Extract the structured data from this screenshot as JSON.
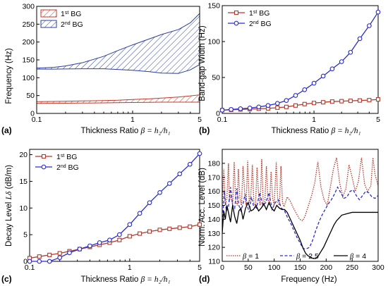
{
  "colors": {
    "red": "#b03a2e",
    "blue": "#2b2bd0",
    "black": "#000000",
    "band1": "#c0392b",
    "band2": "#2c3e9e"
  },
  "chart_data": [
    {
      "panel": "(a)",
      "type": "area",
      "ylabel": "Frequency (Hz)",
      "xlabel_text": "Thickness Ratio ",
      "xlabel_symbol": "β = h₂/h₁",
      "xscale": "log",
      "xlim": [
        0.1,
        5
      ],
      "ylim": [
        0,
        300
      ],
      "xticks": [
        0.1,
        1,
        5
      ],
      "yticks": [
        0,
        50,
        100,
        150,
        200,
        250,
        300
      ],
      "legend": {
        "placement": "top-left",
        "entries": [
          "1st BG",
          "2nd BG"
        ]
      },
      "series": [
        {
          "name": "1st BG",
          "x": [
            0.1,
            0.2,
            0.3,
            0.5,
            0.7,
            1,
            1.5,
            2,
            3,
            4,
            5
          ],
          "lower": [
            28,
            28.5,
            29,
            29.5,
            30,
            30.5,
            31,
            31.5,
            31.5,
            31.5,
            31.5
          ],
          "upper": [
            33,
            34,
            35,
            36,
            37,
            39,
            41,
            43,
            46,
            49,
            52
          ]
        },
        {
          "name": "2nd BG",
          "x": [
            0.1,
            0.15,
            0.2,
            0.3,
            0.5,
            0.7,
            1,
            1.5,
            2,
            3,
            4,
            5
          ],
          "lower": [
            124,
            124,
            124.5,
            125,
            125,
            123,
            121,
            117,
            113,
            112,
            122,
            137
          ],
          "upper": [
            127,
            129,
            133,
            142,
            160,
            176,
            192,
            209,
            221,
            235,
            254,
            280
          ]
        }
      ]
    },
    {
      "panel": "(b)",
      "type": "line",
      "ylabel": "Band-gap Width (Hz)",
      "xlabel_text": "Thickness Ratio ",
      "xlabel_symbol": "β = h₂/h₁",
      "xscale": "log",
      "xlim": [
        0.1,
        5
      ],
      "ylim": [
        0,
        150
      ],
      "xticks": [
        0.1,
        1,
        5
      ],
      "yticks": [
        0,
        50,
        100,
        150
      ],
      "legend": {
        "placement": "top-left",
        "entries": [
          "1st BG",
          "2nd BG"
        ]
      },
      "series": [
        {
          "name": "1st BG",
          "x": [
            0.1,
            0.125,
            0.158,
            0.2,
            0.25,
            0.316,
            0.4,
            0.5,
            0.63,
            0.79,
            1,
            1.26,
            1.58,
            2,
            2.5,
            3.16,
            4,
            5
          ],
          "values": [
            4.5,
            5,
            5.5,
            6,
            6.5,
            7,
            8,
            9,
            11,
            13,
            14.5,
            15.5,
            16.5,
            17,
            17.5,
            18,
            18.5,
            19.5
          ]
        },
        {
          "name": "2nd BG",
          "x": [
            0.1,
            0.125,
            0.158,
            0.2,
            0.25,
            0.316,
            0.4,
            0.5,
            0.63,
            0.79,
            1,
            1.26,
            1.58,
            2,
            2.5,
            3.16,
            4,
            5
          ],
          "values": [
            4.5,
            5.5,
            6.5,
            7.5,
            9,
            11,
            14,
            18,
            25,
            33,
            42,
            52,
            62,
            72,
            85,
            104,
            122,
            141
          ]
        }
      ]
    },
    {
      "panel": "(c)",
      "type": "line",
      "ylabel_text": "Decay Level ",
      "ylabel_symbol": "Lδ",
      "ylabel_unit": " (dB/m)",
      "xlabel_text": "Thickness Ratio ",
      "xlabel_symbol": "β = h₂/h₁",
      "xscale": "log",
      "xlim": [
        0.1,
        5
      ],
      "ylim": [
        0,
        21
      ],
      "xticks": [
        0.1,
        1,
        5
      ],
      "yticks": [
        0,
        5,
        10,
        15,
        20
      ],
      "legend": {
        "placement": "top-left",
        "entries": [
          "1st BG",
          "2nd BG"
        ]
      },
      "series": [
        {
          "name": "1st BG",
          "x": [
            0.1,
            0.125,
            0.158,
            0.2,
            0.25,
            0.316,
            0.4,
            0.5,
            0.63,
            0.79,
            1,
            1.26,
            1.58,
            2,
            2.5,
            3.16,
            4,
            5
          ],
          "values": [
            0.6,
            0.9,
            1.2,
            1.5,
            1.9,
            2.3,
            2.7,
            3.1,
            3.5,
            4.0,
            4.7,
            5.2,
            5.6,
            5.9,
            6.1,
            6.3,
            6.5,
            6.9
          ]
        },
        {
          "name": "2nd BG",
          "x": [
            0.1,
            0.125,
            0.158,
            0.2,
            0.25,
            0.316,
            0.4,
            0.5,
            0.63,
            0.79,
            1,
            1.26,
            1.58,
            2,
            2.5,
            3.16,
            4,
            5
          ],
          "values": [
            0,
            0,
            0,
            0.7,
            1.6,
            2.3,
            2.9,
            3.5,
            4.0,
            5.0,
            6.9,
            9.0,
            11.0,
            12.9,
            14.6,
            16.4,
            18.2,
            20.2
          ]
        }
      ]
    },
    {
      "panel": "(d)",
      "type": "line",
      "ylabel": "Norm. Acc. Level (dB)",
      "xlabel": "Frequency (Hz)",
      "xlim": [
        0,
        300
      ],
      "ylim": [
        110,
        190
      ],
      "xticks": [
        0,
        50,
        100,
        150,
        200,
        250,
        300
      ],
      "yticks": [
        110,
        120,
        130,
        140,
        150,
        160,
        170,
        180
      ],
      "legend": {
        "placement": "bottom",
        "entries": [
          "β = 1",
          "β = 2.5",
          "β = 4"
        ]
      },
      "series": [
        {
          "name": "β = 1",
          "style": "dotted",
          "x": [
            0,
            3,
            6,
            9,
            12,
            14,
            17,
            20,
            23,
            26,
            29,
            31,
            34,
            37,
            40,
            43,
            46,
            49,
            52,
            55,
            58,
            61,
            64,
            67,
            70,
            73,
            76,
            79,
            82,
            85,
            88,
            91,
            94,
            97,
            100,
            104,
            107,
            110,
            113,
            116,
            119,
            125,
            131,
            137,
            143,
            149,
            155,
            160,
            166,
            172,
            178,
            184,
            190,
            196,
            202,
            208,
            214,
            220,
            226,
            232,
            238,
            244,
            250,
            256,
            262,
            268,
            274,
            280,
            286,
            290,
            294,
            300
          ],
          "values": [
            150,
            176,
            150,
            155,
            180,
            153,
            158,
            150,
            181,
            153,
            150,
            176,
            155,
            150,
            178,
            160,
            150,
            182,
            152,
            157,
            179,
            151,
            150,
            177,
            158,
            150,
            183,
            150,
            152,
            178,
            155,
            150,
            174,
            155,
            150,
            181,
            152,
            150,
            178,
            152,
            149,
            156,
            153,
            148,
            144,
            140,
            139,
            143,
            150,
            157,
            166,
            181,
            163,
            154,
            150,
            163,
            176,
            184,
            166,
            156,
            162,
            179,
            170,
            160,
            167,
            184,
            165,
            160,
            164,
            184,
            172,
            164
          ]
        },
        {
          "name": "β = 2.5",
          "style": "dashed",
          "x": [
            0,
            4,
            8,
            12,
            16,
            20,
            24,
            28,
            32,
            36,
            40,
            44,
            48,
            52,
            56,
            60,
            66,
            72,
            78,
            84,
            90,
            96,
            102,
            108,
            114,
            120,
            126,
            132,
            138,
            144,
            150,
            156,
            162,
            168,
            174,
            180,
            186,
            192,
            198,
            204,
            210,
            216,
            222,
            228,
            234,
            240,
            246,
            252,
            258,
            264,
            270,
            276,
            282,
            288,
            294,
            300
          ],
          "values": [
            135,
            160,
            146,
            149,
            163,
            150,
            148,
            162,
            150,
            146,
            151,
            158,
            150,
            145,
            156,
            150,
            148,
            159,
            150,
            152,
            159,
            147,
            152,
            154,
            148,
            146,
            141,
            137,
            132,
            127,
            123,
            119,
            119,
            120,
            125,
            132,
            138,
            143,
            147,
            151,
            154,
            158,
            163,
            159,
            155,
            156,
            160,
            161,
            157,
            154,
            157,
            160,
            159,
            156,
            155,
            157
          ]
        },
        {
          "name": "β = 4",
          "style": "solid",
          "x": [
            0,
            3,
            6,
            9,
            12,
            16,
            20,
            24,
            28,
            32,
            36,
            40,
            45,
            50,
            55,
            60,
            65,
            70,
            75,
            80,
            85,
            90,
            95,
            100,
            105,
            110,
            115,
            120,
            125,
            130,
            135,
            140,
            145,
            150,
            155,
            160,
            165,
            170,
            175,
            180,
            185,
            190,
            195,
            200,
            205,
            210,
            215,
            220,
            225,
            230,
            240,
            250,
            260,
            270,
            280,
            290,
            300
          ],
          "values": [
            130,
            146,
            140,
            150,
            145,
            138,
            150,
            142,
            137,
            146,
            148,
            140,
            148,
            152,
            146,
            147,
            150,
            146,
            148,
            151,
            147,
            152,
            148,
            146,
            150,
            148,
            147,
            147,
            145,
            141,
            137,
            133,
            129,
            125,
            120,
            116,
            114,
            113,
            112,
            112,
            114,
            117,
            120,
            124,
            128,
            132,
            136,
            139,
            141,
            143,
            144,
            145,
            145,
            145,
            145,
            145,
            145
          ]
        }
      ]
    }
  ]
}
